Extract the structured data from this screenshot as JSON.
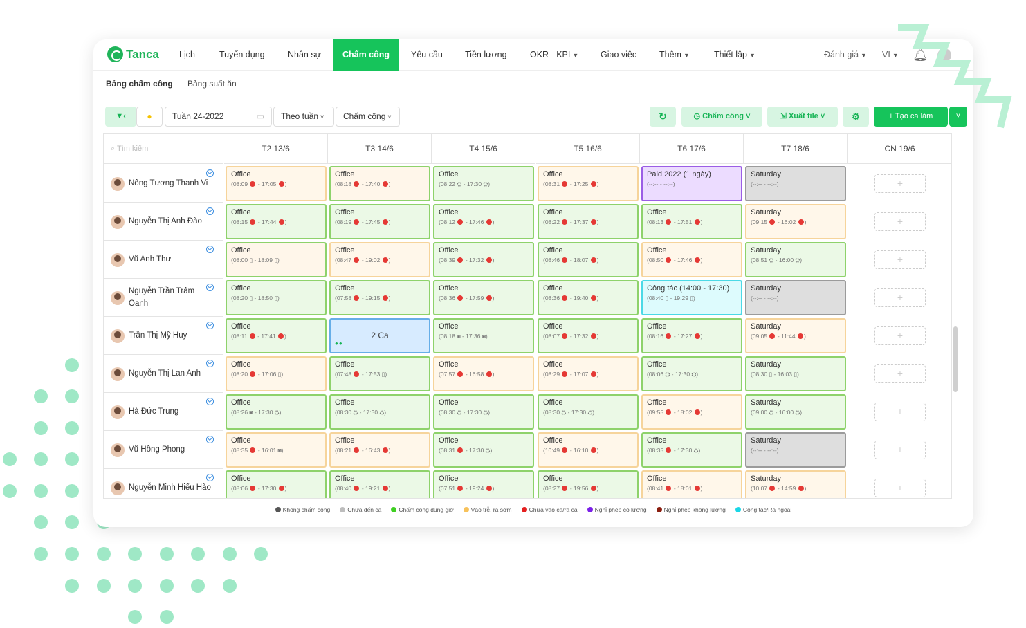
{
  "app": {
    "brand": "Tanca"
  },
  "nav": {
    "items": [
      "Lịch",
      "Tuyển dụng",
      "Nhân sự",
      "Chấm công",
      "Yêu cầu",
      "Tiền lương",
      "OKR - KPI",
      "Giao việc",
      "Thêm",
      "Thiết lập"
    ],
    "active": "Chấm công",
    "right": [
      "Đánh giá",
      "VI"
    ]
  },
  "subtabs": [
    "Bảng chấm công",
    "Bảng suất ăn"
  ],
  "toolbar": {
    "week": "Tuần 24-2022",
    "view": "Theo tuần",
    "mode": "Chấm công",
    "btn_timekeeping": "Chấm công",
    "btn_export": "Xuất file",
    "btn_create": "+ Tạo ca làm"
  },
  "grid": {
    "search_placeholder": "Tìm kiếm",
    "days": [
      "T2 13/6",
      "T3 14/6",
      "T4 15/6",
      "T5 16/6",
      "T6 17/6",
      "T7 18/6",
      "CN 19/6"
    ],
    "rows": [
      {
        "name": "Nông Tương Thanh Vi",
        "cells": [
          {
            "t": "Office",
            "time": "(08:09 ✖ - 17:05 ✖)",
            "s": "yellow"
          },
          {
            "t": "Office",
            "time": "(08:18 ✖ - 17:40 ✖)",
            "s": "orange"
          },
          {
            "t": "Office",
            "time": "(08:22 ⛭ - 17:30 ⛭)",
            "s": "green"
          },
          {
            "t": "Office",
            "time": "(08:31 ✖ - 17:25 ✖)",
            "s": "yellow"
          },
          {
            "t": "Paid 2022 (1 ngày)",
            "time": "(--:-- - --:--)",
            "s": "purple"
          },
          {
            "t": "Saturday",
            "time": "(--:-- - --:--)",
            "s": "gray"
          }
        ]
      },
      {
        "name": "Nguyễn Thị Anh Đào",
        "cells": [
          {
            "t": "Office",
            "time": "(08:15 ✖ - 17:44 ✖)",
            "s": "green"
          },
          {
            "t": "Office",
            "time": "(08:19 ✖ - 17:45 ✖)",
            "s": "green"
          },
          {
            "t": "Office",
            "time": "(08:12 ✖ - 17:46 ✖)",
            "s": "green"
          },
          {
            "t": "Office",
            "time": "(08:22 ✖ - 17:37 ✖)",
            "s": "green"
          },
          {
            "t": "Office",
            "time": "(08:13 ✖ - 17:51 ✖)",
            "s": "green"
          },
          {
            "t": "Saturday",
            "time": "(09:15 ✖ - 16:02 ✖)",
            "s": "yellow"
          }
        ]
      },
      {
        "name": "Vũ Anh Thư",
        "cells": [
          {
            "t": "Office",
            "time": "(08:00 ▯ - 18:09 ▯)",
            "s": "orange"
          },
          {
            "t": "Office",
            "time": "(08:47 ✖ - 19:02 ✖)",
            "s": "yellow"
          },
          {
            "t": "Office",
            "time": "(08:39 ✖ - 17:32 ✖)",
            "s": "green"
          },
          {
            "t": "Office",
            "time": "(08:46 ✖ - 18:07 ✖)",
            "s": "green"
          },
          {
            "t": "Office",
            "time": "(08:50 ✖ - 17:46 ✖)",
            "s": "yellow"
          },
          {
            "t": "Saturday",
            "time": "(08:51 ⛭ - 16:00 ⛭)",
            "s": "green"
          }
        ]
      },
      {
        "name": "Nguyễn Trần Trâm Oanh",
        "cells": [
          {
            "t": "Office",
            "time": "(08:20 ▯ - 18:50 ▯)",
            "s": "green"
          },
          {
            "t": "Office",
            "time": "(07:58 ✖ - 19:15 ✖)",
            "s": "green"
          },
          {
            "t": "Office",
            "time": "(08:36 ✖ - 17:59 ✖)",
            "s": "green"
          },
          {
            "t": "Office",
            "time": "(08:36 ✖ - 19:40 ✖)",
            "s": "green"
          },
          {
            "t": "Công tác (14:00 - 17:30)",
            "time": "(08:40 ▯ - 19:29 ▯)",
            "s": "cyan"
          },
          {
            "t": "Saturday",
            "time": "(--:-- - --:--)",
            "s": "gray"
          }
        ]
      },
      {
        "name": "Trần Thị Mỹ Huy",
        "cells": [
          {
            "t": "Office",
            "time": "(08:11 ✖ - 17:41 ✖)",
            "s": "green"
          },
          {
            "t": "2 Ca",
            "time": "",
            "s": "blue"
          },
          {
            "t": "Office",
            "time": "(08:18 ◙ - 17:36 ◙)",
            "s": "green"
          },
          {
            "t": "Office",
            "time": "(08:07 ✖ - 17:32 ✖)",
            "s": "green"
          },
          {
            "t": "Office",
            "time": "(08:16 ✖ - 17:27 ✖)",
            "s": "green"
          },
          {
            "t": "Saturday",
            "time": "(09:05 ✖ - 11:44 ✖)",
            "s": "yellow"
          }
        ]
      },
      {
        "name": "Nguyễn Thị Lan Anh",
        "cells": [
          {
            "t": "Office",
            "time": "(08:20 ✖ - 17:06 ▯)",
            "s": "yellow"
          },
          {
            "t": "Office",
            "time": "(07:48 ✖ - 17:53 ▯)",
            "s": "green"
          },
          {
            "t": "Office",
            "time": "(07:57 ✖ - 16:58 ✖)",
            "s": "yellow"
          },
          {
            "t": "Office",
            "time": "(08:29 ✖ - 17:07 ✖)",
            "s": "yellow"
          },
          {
            "t": "Office",
            "time": "(08:06 ⛭ - 17:30 ⛭)",
            "s": "green"
          },
          {
            "t": "Saturday",
            "time": "(08:30 ▯ - 16:03 ▯)",
            "s": "green"
          }
        ]
      },
      {
        "name": "Hà Đức Trung",
        "cells": [
          {
            "t": "Office",
            "time": "(08:26 ◙ - 17:30 ⛭)",
            "s": "green"
          },
          {
            "t": "Office",
            "time": "(08:30 ⛭ - 17:30 ⛭)",
            "s": "green"
          },
          {
            "t": "Office",
            "time": "(08:30 ⛭ - 17:30 ⛭)",
            "s": "green"
          },
          {
            "t": "Office",
            "time": "(08:30 ⛭ - 17:30 ⛭)",
            "s": "green"
          },
          {
            "t": "Office",
            "time": "(09:55 ✖ - 18:02 ✖)",
            "s": "yellow"
          },
          {
            "t": "Saturday",
            "time": "(09:00 ⛭ - 16:00 ⛭)",
            "s": "green"
          }
        ]
      },
      {
        "name": "Vũ Hồng Phong",
        "cells": [
          {
            "t": "Office",
            "time": "(08:35 ✖ - 16:01 ◙)",
            "s": "yellow"
          },
          {
            "t": "Office",
            "time": "(08:21 ✖ - 16:43 ✖)",
            "s": "yellow"
          },
          {
            "t": "Office",
            "time": "(08:31 ✖ - 17:30 ⛭)",
            "s": "green"
          },
          {
            "t": "Office",
            "time": "(10:49 ✖ - 16:10 ✖)",
            "s": "yellow"
          },
          {
            "t": "Office",
            "time": "(08:35 ✖ - 17:30 ⛭)",
            "s": "green"
          },
          {
            "t": "Saturday",
            "time": "(--:-- - --:--)",
            "s": "gray"
          }
        ]
      },
      {
        "name": "Nguyễn Minh Hiếu Hào",
        "cells": [
          {
            "t": "Office",
            "time": "(08:06 ✖ - 17:30 ✖)",
            "s": "green"
          },
          {
            "t": "Office",
            "time": "(08:40 ✖ - 19:21 ✖)",
            "s": "green"
          },
          {
            "t": "Office",
            "time": "(07:51 ✖ - 19:24 ✖)",
            "s": "green"
          },
          {
            "t": "Office",
            "time": "(08:27 ✖ - 19:56 ✖)",
            "s": "green"
          },
          {
            "t": "Office",
            "time": "(08:41 ✖ - 18:01 ✖)",
            "s": "yellow"
          },
          {
            "t": "Saturday",
            "time": "(10:07 ✖ - 14:59 ✖)",
            "s": "yellow"
          }
        ]
      }
    ]
  },
  "legend": [
    {
      "label": "Không chấm công",
      "color": "#555555"
    },
    {
      "label": "Chưa đến ca",
      "color": "#bdbdbd"
    },
    {
      "label": "Chấm công đúng giờ",
      "color": "#3fcf22"
    },
    {
      "label": "Vào trễ, ra sớm",
      "color": "#f7c25b"
    },
    {
      "label": "Chưa vào ca/ra ca",
      "color": "#e41f1f"
    },
    {
      "label": "Nghỉ phép có lương",
      "color": "#7b1fe8"
    },
    {
      "label": "Nghỉ phép không lương",
      "color": "#8a1d0e"
    },
    {
      "label": "Công tác/Ra ngoài",
      "color": "#1ad6e6"
    }
  ],
  "colors": {
    "brand": "#16c45b",
    "accent_light": "#d7f5e2"
  }
}
